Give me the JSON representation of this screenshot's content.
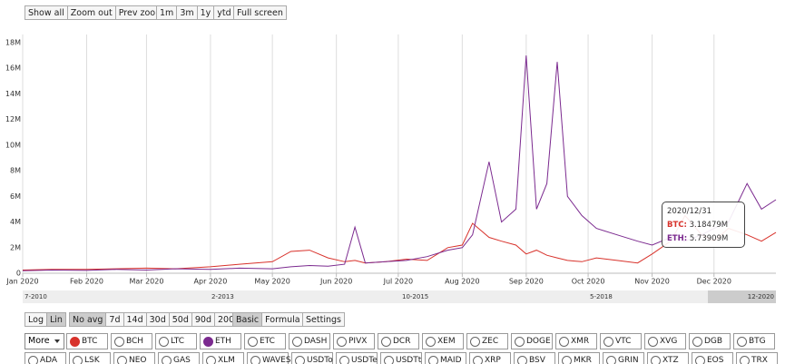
{
  "toolbar": {
    "zoom": [
      "Show all",
      "Zoom out",
      "Prev zoom"
    ],
    "ranges": [
      "1m",
      "3m",
      "1y",
      "ytd"
    ],
    "fullscreen": "Full screen"
  },
  "chart_data": {
    "type": "line",
    "x": [
      "2020/01/01",
      "2020/01/15",
      "2020/02/01",
      "2020/02/15",
      "2020/03/01",
      "2020/03/15",
      "2020/04/01",
      "2020/04/15",
      "2020/05/01",
      "2020/05/10",
      "2020/05/19",
      "2020/05/28",
      "2020/06/05",
      "2020/06/10",
      "2020/06/15",
      "2020/06/25",
      "2020/07/05",
      "2020/07/15",
      "2020/07/25",
      "2020/08/01",
      "2020/08/06",
      "2020/08/14",
      "2020/08/20",
      "2020/08/27",
      "2020/09/01",
      "2020/09/06",
      "2020/09/11",
      "2020/09/16",
      "2020/09/21",
      "2020/09/28",
      "2020/10/05",
      "2020/10/15",
      "2020/10/25",
      "2020/11/01",
      "2020/11/10",
      "2020/11/17",
      "2020/11/25",
      "2020/12/01",
      "2020/12/08",
      "2020/12/17",
      "2020/12/24",
      "2020/12/31"
    ],
    "series": [
      {
        "name": "BTC",
        "color": "#d8322b",
        "values": [
          250000,
          300000,
          300000,
          350000,
          400000,
          350000,
          500000,
          700000,
          900000,
          1700000,
          1800000,
          1200000,
          900000,
          1000000,
          800000,
          900000,
          1100000,
          1000000,
          2000000,
          2200000,
          3900000,
          2800000,
          2500000,
          2200000,
          1500000,
          1800000,
          1400000,
          1200000,
          1000000,
          900000,
          1200000,
          1000000,
          800000,
          1500000,
          2500000,
          4500000,
          3000000,
          2500000,
          3500000,
          3000000,
          2500000,
          3184790
        ]
      },
      {
        "name": "ETH",
        "color": "#7b2a8f",
        "values": [
          200000,
          250000,
          220000,
          300000,
          250000,
          350000,
          300000,
          400000,
          350000,
          500000,
          600000,
          550000,
          700000,
          3600000,
          800000,
          900000,
          1000000,
          1300000,
          1800000,
          2000000,
          3000000,
          8700000,
          4000000,
          5000000,
          17000000,
          5000000,
          7000000,
          16500000,
          6000000,
          4500000,
          3500000,
          3000000,
          2500000,
          2200000,
          2800000,
          2500000,
          3000000,
          3500000,
          4000000,
          7000000,
          5000000,
          5739090
        ]
      }
    ],
    "xlim": [
      "2020/01/01",
      "2020/12/31"
    ],
    "xticks": [
      {
        "value": "2020/01/01",
        "label": "Jan 2020"
      },
      {
        "value": "2020/02/01",
        "label": "Feb 2020"
      },
      {
        "value": "2020/03/01",
        "label": "Mar 2020"
      },
      {
        "value": "2020/04/01",
        "label": "Apr 2020"
      },
      {
        "value": "2020/05/01",
        "label": "May 2020"
      },
      {
        "value": "2020/06/01",
        "label": "Jun 2020"
      },
      {
        "value": "2020/07/01",
        "label": "Jul 2020"
      },
      {
        "value": "2020/08/01",
        "label": "Aug 2020"
      },
      {
        "value": "2020/09/01",
        "label": "Sep 2020"
      },
      {
        "value": "2020/10/01",
        "label": "Oct 2020"
      },
      {
        "value": "2020/11/01",
        "label": "Nov 2020"
      },
      {
        "value": "2020/12/01",
        "label": "Dec 2020"
      }
    ],
    "ylim": [
      0,
      18000000
    ],
    "yticks": [
      0,
      {
        "value": 2000000,
        "label": "2M"
      },
      {
        "value": 4000000,
        "label": "4M"
      },
      {
        "value": 6000000,
        "label": "6M"
      },
      {
        "value": 8000000,
        "label": "8M"
      },
      {
        "value": 10000000,
        "label": "10M"
      },
      {
        "value": 12000000,
        "label": "12M"
      },
      {
        "value": 14000000,
        "label": "14M"
      },
      {
        "value": 16000000,
        "label": "16M"
      },
      {
        "value": 18000000,
        "label": "18M"
      }
    ],
    "xgrid": true,
    "navigator": {
      "labels": [
        "7-2010",
        "2-2013",
        "10-2015",
        "5-2018",
        "12-2020"
      ]
    },
    "tooltip": {
      "title": "2020/12/31",
      "lines": [
        {
          "label": "BTC:",
          "value": "3.18479M"
        },
        {
          "label": "ETH:",
          "value": "5.73909M"
        }
      ]
    }
  },
  "controls": {
    "scale": [
      {
        "label": "Log",
        "active": false
      },
      {
        "label": "Lin",
        "active": true
      }
    ],
    "averages": [
      {
        "label": "No avg",
        "active": true
      },
      {
        "label": "7d",
        "active": false
      },
      {
        "label": "14d",
        "active": false
      },
      {
        "label": "30d",
        "active": false
      },
      {
        "label": "50d",
        "active": false
      },
      {
        "label": "90d",
        "active": false
      },
      {
        "label": "200d",
        "active": false
      }
    ],
    "modes": [
      {
        "label": "Basic",
        "active": true
      },
      {
        "label": "Formula",
        "active": false
      }
    ],
    "settings": "Settings",
    "more": "More",
    "coins": [
      {
        "name": "BTC",
        "checked": true,
        "color": "#d8322b"
      },
      {
        "name": "BCH",
        "checked": false
      },
      {
        "name": "LTC",
        "checked": false
      },
      {
        "name": "ETH",
        "checked": true,
        "color": "#7b2a8f"
      },
      {
        "name": "ETC",
        "checked": false
      },
      {
        "name": "DASH",
        "checked": false
      },
      {
        "name": "PIVX",
        "checked": false
      },
      {
        "name": "DCR",
        "checked": false
      },
      {
        "name": "XEM",
        "checked": false
      },
      {
        "name": "ZEC",
        "checked": false
      },
      {
        "name": "DOGE",
        "checked": false
      },
      {
        "name": "XMR",
        "checked": false
      },
      {
        "name": "VTC",
        "checked": false
      },
      {
        "name": "XVG",
        "checked": false
      },
      {
        "name": "DGB",
        "checked": false
      },
      {
        "name": "BTG",
        "checked": false
      },
      {
        "name": "ADA",
        "checked": false
      },
      {
        "name": "LSK",
        "checked": false
      },
      {
        "name": "NEO",
        "checked": false
      },
      {
        "name": "GAS",
        "checked": false
      },
      {
        "name": "XLM",
        "checked": false
      },
      {
        "name": "WAVES",
        "checked": false
      },
      {
        "name": "USDTo",
        "checked": false
      },
      {
        "name": "USDTe",
        "checked": false
      },
      {
        "name": "USDTt",
        "checked": false
      },
      {
        "name": "MAID",
        "checked": false
      },
      {
        "name": "XRP",
        "checked": false
      },
      {
        "name": "BSV",
        "checked": false
      },
      {
        "name": "MKR",
        "checked": false
      },
      {
        "name": "GRIN",
        "checked": false
      },
      {
        "name": "XTZ",
        "checked": false
      },
      {
        "name": "EOS",
        "checked": false
      },
      {
        "name": "TRX",
        "checked": false
      }
    ]
  }
}
